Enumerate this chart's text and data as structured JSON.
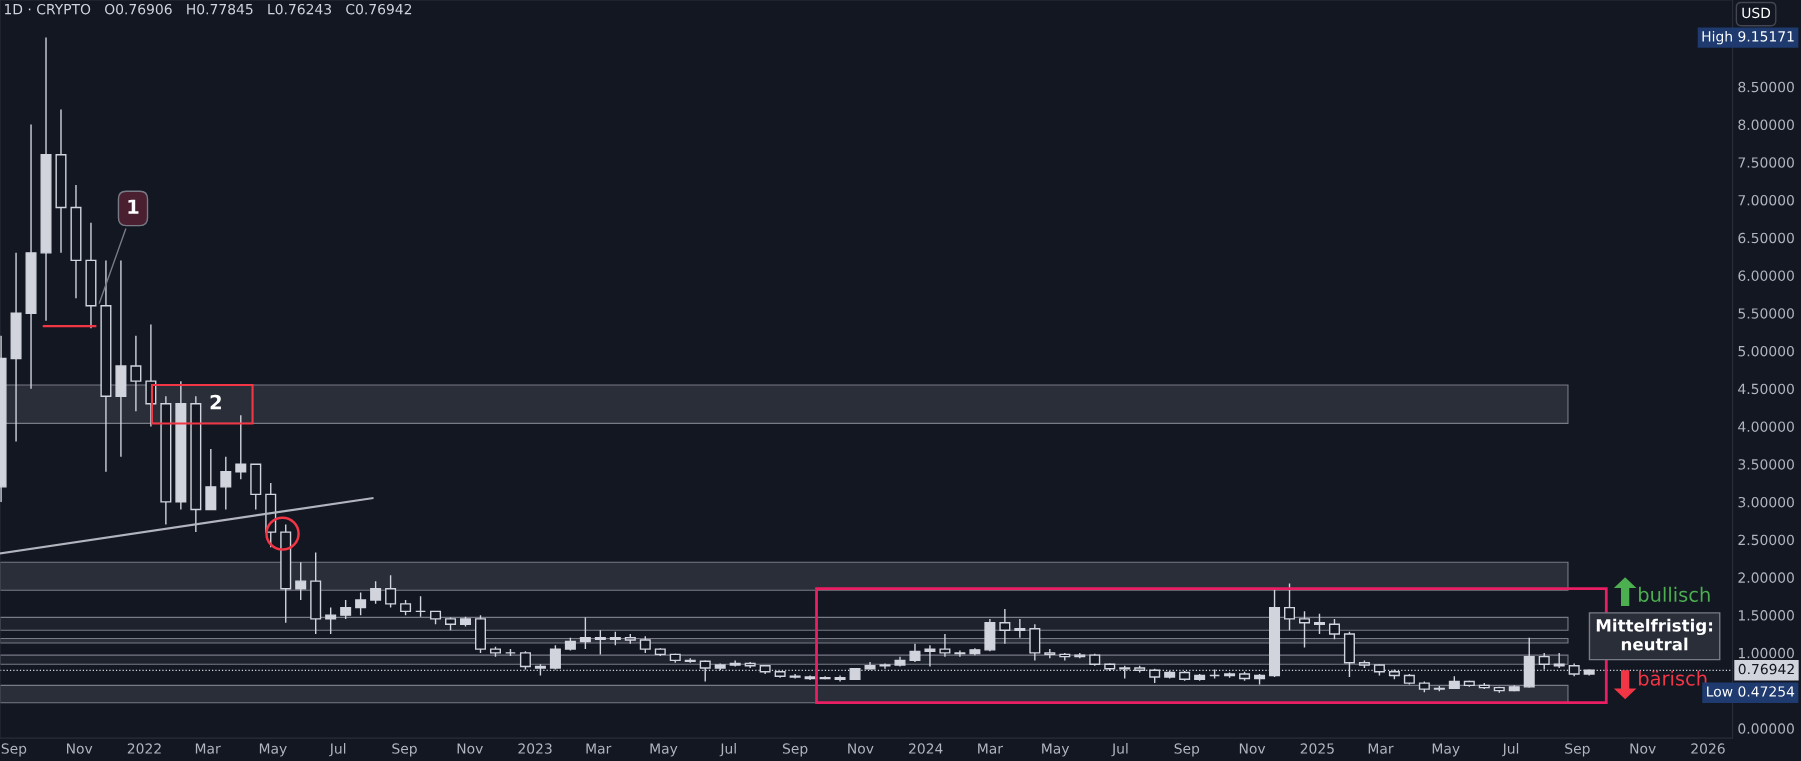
{
  "chart_data": {
    "type": "candlestick",
    "title": "1D · CRYPTO   O0.76906   H0.77845   L0.76243   C0.76942",
    "ylabel": "USD",
    "color": "#d1d4dc",
    "x": [
      "2021-08-20",
      "2021-09-03",
      "2021-09-17",
      "2021-10-01",
      "2021-10-15",
      "2021-10-29",
      "2021-11-12",
      "2021-11-26",
      "2021-12-10",
      "2021-12-24",
      "2022-01-07",
      "2022-01-21",
      "2022-02-04",
      "2022-02-18",
      "2022-03-04",
      "2022-03-18",
      "2022-04-01",
      "2022-04-15",
      "2022-04-29",
      "2022-05-13",
      "2022-05-27",
      "2022-06-10",
      "2022-06-24",
      "2022-07-08",
      "2022-07-22",
      "2022-08-05",
      "2022-08-19",
      "2022-09-02",
      "2022-09-16",
      "2022-09-30",
      "2022-10-14",
      "2022-10-28",
      "2022-11-11",
      "2022-11-25",
      "2022-12-09",
      "2022-12-23",
      "2023-01-06",
      "2023-01-20",
      "2023-02-03",
      "2023-02-17",
      "2023-03-03",
      "2023-03-17",
      "2023-03-31",
      "2023-04-14",
      "2023-04-28",
      "2023-05-12",
      "2023-05-26",
      "2023-06-09",
      "2023-06-23",
      "2023-07-07",
      "2023-07-21",
      "2023-08-04",
      "2023-08-18",
      "2023-09-01",
      "2023-09-15",
      "2023-09-29",
      "2023-10-13",
      "2023-10-27",
      "2023-11-10",
      "2023-11-24",
      "2023-12-08",
      "2023-12-22",
      "2024-01-05",
      "2024-01-19",
      "2024-02-02",
      "2024-02-16",
      "2024-03-01",
      "2024-03-15",
      "2024-03-29",
      "2024-04-12",
      "2024-04-26",
      "2024-05-10",
      "2024-05-24",
      "2024-06-07",
      "2024-06-21",
      "2024-07-05",
      "2024-07-19",
      "2024-08-02",
      "2024-08-16",
      "2024-08-30",
      "2024-09-13",
      "2024-09-27",
      "2024-10-11",
      "2024-10-25",
      "2024-11-08",
      "2024-11-22",
      "2024-12-06",
      "2024-12-20",
      "2025-01-03",
      "2025-01-17",
      "2025-01-31",
      "2025-02-14",
      "2025-02-28",
      "2025-03-14",
      "2025-03-28",
      "2025-04-11",
      "2025-04-25",
      "2025-05-09",
      "2025-05-23",
      "2025-06-06",
      "2025-06-20",
      "2025-07-04",
      "2025-07-18",
      "2025-08-01",
      "2025-08-15",
      "2025-08-29",
      "2025-09-12"
    ],
    "ohlc": [
      [
        3.2,
        5.2,
        3.0,
        4.9
      ],
      [
        4.9,
        6.3,
        3.8,
        5.5
      ],
      [
        5.5,
        8.0,
        4.5,
        6.3
      ],
      [
        6.3,
        9.15171,
        5.4,
        7.6
      ],
      [
        7.6,
        8.2,
        6.3,
        6.9
      ],
      [
        6.9,
        7.2,
        5.7,
        6.2
      ],
      [
        6.2,
        6.7,
        5.3,
        5.6
      ],
      [
        5.6,
        6.2,
        3.4,
        4.4
      ],
      [
        4.4,
        6.2,
        3.6,
        4.8
      ],
      [
        4.8,
        5.2,
        4.2,
        4.6
      ],
      [
        4.6,
        5.35,
        4.0,
        4.3
      ],
      [
        4.3,
        4.4,
        2.7,
        3.0
      ],
      [
        3.0,
        4.6,
        2.9,
        4.3
      ],
      [
        4.3,
        4.4,
        2.6,
        2.9
      ],
      [
        2.9,
        3.7,
        2.9,
        3.2
      ],
      [
        3.2,
        3.6,
        2.9,
        3.4
      ],
      [
        3.4,
        4.15,
        3.3,
        3.5
      ],
      [
        3.5,
        3.5,
        2.9,
        3.1
      ],
      [
        3.1,
        3.25,
        2.4,
        2.6
      ],
      [
        2.6,
        2.7,
        1.4,
        1.85
      ],
      [
        1.85,
        2.2,
        1.7,
        1.95
      ],
      [
        1.95,
        2.33,
        1.25,
        1.45
      ],
      [
        1.45,
        1.6,
        1.25,
        1.5
      ],
      [
        1.5,
        1.7,
        1.45,
        1.6
      ],
      [
        1.6,
        1.8,
        1.5,
        1.7
      ],
      [
        1.7,
        1.95,
        1.65,
        1.85
      ],
      [
        1.85,
        2.03,
        1.6,
        1.65
      ],
      [
        1.65,
        1.7,
        1.5,
        1.55
      ],
      [
        1.55,
        1.75,
        1.48,
        1.55
      ],
      [
        1.55,
        1.55,
        1.38,
        1.45
      ],
      [
        1.45,
        1.47,
        1.3,
        1.38
      ],
      [
        1.38,
        1.48,
        1.35,
        1.45
      ],
      [
        1.45,
        1.5,
        1.0,
        1.05
      ],
      [
        1.05,
        1.08,
        0.95,
        1.0
      ],
      [
        1.0,
        1.05,
        0.96,
        1.0
      ],
      [
        1.0,
        1.02,
        0.78,
        0.82
      ],
      [
        0.82,
        0.85,
        0.7,
        0.8
      ],
      [
        0.8,
        1.1,
        0.78,
        1.05
      ],
      [
        1.05,
        1.2,
        1.03,
        1.15
      ],
      [
        1.15,
        1.47,
        1.05,
        1.2
      ],
      [
        1.2,
        1.3,
        0.98,
        1.18
      ],
      [
        1.18,
        1.28,
        1.1,
        1.2
      ],
      [
        1.2,
        1.25,
        1.12,
        1.17
      ],
      [
        1.17,
        1.22,
        1.0,
        1.05
      ],
      [
        1.05,
        1.06,
        0.96,
        0.98
      ],
      [
        0.98,
        0.99,
        0.87,
        0.9
      ],
      [
        0.9,
        0.93,
        0.87,
        0.89
      ],
      [
        0.89,
        0.9,
        0.62,
        0.8
      ],
      [
        0.8,
        0.86,
        0.77,
        0.84
      ],
      [
        0.84,
        0.9,
        0.82,
        0.86
      ],
      [
        0.86,
        0.88,
        0.8,
        0.83
      ],
      [
        0.83,
        0.84,
        0.72,
        0.75
      ],
      [
        0.75,
        0.76,
        0.67,
        0.69
      ],
      [
        0.69,
        0.72,
        0.66,
        0.68
      ],
      [
        0.68,
        0.7,
        0.64,
        0.66
      ],
      [
        0.66,
        0.69,
        0.65,
        0.67
      ],
      [
        0.67,
        0.7,
        0.62,
        0.65
      ],
      [
        0.65,
        0.8,
        0.64,
        0.79
      ],
      [
        0.79,
        0.88,
        0.78,
        0.83
      ],
      [
        0.83,
        0.86,
        0.79,
        0.84
      ],
      [
        0.84,
        0.95,
        0.82,
        0.9
      ],
      [
        0.9,
        1.12,
        0.88,
        1.02
      ],
      [
        1.02,
        1.1,
        0.82,
        1.05
      ],
      [
        1.05,
        1.25,
        0.95,
        1.0
      ],
      [
        1.0,
        1.03,
        0.95,
        0.99
      ],
      [
        0.99,
        1.06,
        0.97,
        1.04
      ],
      [
        1.04,
        1.45,
        1.02,
        1.4
      ],
      [
        1.4,
        1.58,
        1.12,
        1.3
      ],
      [
        1.3,
        1.45,
        1.2,
        1.32
      ],
      [
        1.32,
        1.38,
        0.9,
        1.0
      ],
      [
        1.0,
        1.05,
        0.93,
        0.98
      ],
      [
        0.98,
        1.0,
        0.9,
        0.95
      ],
      [
        0.95,
        1.0,
        0.93,
        0.97
      ],
      [
        0.97,
        0.99,
        0.83,
        0.85
      ],
      [
        0.85,
        0.86,
        0.76,
        0.79
      ],
      [
        0.79,
        0.83,
        0.66,
        0.8
      ],
      [
        0.8,
        0.83,
        0.74,
        0.77
      ],
      [
        0.77,
        0.79,
        0.6,
        0.68
      ],
      [
        0.68,
        0.76,
        0.66,
        0.74
      ],
      [
        0.74,
        0.76,
        0.63,
        0.65
      ],
      [
        0.65,
        0.72,
        0.63,
        0.7
      ],
      [
        0.7,
        0.78,
        0.66,
        0.7
      ],
      [
        0.7,
        0.74,
        0.67,
        0.72
      ],
      [
        0.72,
        0.75,
        0.63,
        0.66
      ],
      [
        0.66,
        0.72,
        0.58,
        0.7
      ],
      [
        0.7,
        1.85,
        0.68,
        1.6
      ],
      [
        1.6,
        1.92,
        1.3,
        1.45
      ],
      [
        1.45,
        1.55,
        1.07,
        1.4
      ],
      [
        1.4,
        1.52,
        1.25,
        1.38
      ],
      [
        1.38,
        1.45,
        1.18,
        1.25
      ],
      [
        1.25,
        1.28,
        0.68,
        0.87
      ],
      [
        0.87,
        0.9,
        0.8,
        0.84
      ],
      [
        0.84,
        0.85,
        0.7,
        0.75
      ],
      [
        0.75,
        0.78,
        0.65,
        0.7
      ],
      [
        0.7,
        0.72,
        0.58,
        0.6
      ],
      [
        0.6,
        0.62,
        0.48,
        0.52
      ],
      [
        0.52,
        0.56,
        0.49,
        0.53
      ],
      [
        0.53,
        0.69,
        0.52,
        0.62
      ],
      [
        0.62,
        0.63,
        0.55,
        0.57
      ],
      [
        0.57,
        0.6,
        0.52,
        0.54
      ],
      [
        0.54,
        0.55,
        0.47254,
        0.5
      ],
      [
        0.5,
        0.57,
        0.49,
        0.55
      ],
      [
        0.55,
        1.2,
        0.54,
        0.95
      ],
      [
        0.95,
        1.0,
        0.78,
        0.85
      ],
      [
        0.85,
        1.0,
        0.8,
        0.83
      ],
      [
        0.83,
        0.86,
        0.69,
        0.72
      ],
      [
        0.72,
        0.77845,
        0.7,
        0.76942
      ]
    ],
    "series": [
      {
        "type": "line",
        "color": "#b2b5be",
        "x": [
          "2021-08-20",
          "2022-08-02"
        ],
        "values": [
          2.32,
          3.05
        ]
      },
      {
        "type": "line",
        "color": "#f23645",
        "x": [
          "2021-09-29",
          "2021-11-16"
        ],
        "values": [
          5.33,
          5.33
        ]
      }
    ],
    "xlim": [
      "2021-08-19",
      "2026-01-24"
    ],
    "xticks": [
      {
        "value": "2021-09-01",
        "label": "Sep"
      },
      {
        "value": "2021-11-01",
        "label": "Nov"
      },
      {
        "value": "2022-01-01",
        "label": "2022"
      },
      {
        "value": "2022-03-01",
        "label": "Mar"
      },
      {
        "value": "2022-05-01",
        "label": "May"
      },
      {
        "value": "2022-07-01",
        "label": "Jul"
      },
      {
        "value": "2022-09-01",
        "label": "Sep"
      },
      {
        "value": "2022-11-01",
        "label": "Nov"
      },
      {
        "value": "2023-01-01",
        "label": "2023"
      },
      {
        "value": "2023-03-01",
        "label": "Mar"
      },
      {
        "value": "2023-05-01",
        "label": "May"
      },
      {
        "value": "2023-07-01",
        "label": "Jul"
      },
      {
        "value": "2023-09-01",
        "label": "Sep"
      },
      {
        "value": "2023-11-01",
        "label": "Nov"
      },
      {
        "value": "2024-01-01",
        "label": "2024"
      },
      {
        "value": "2024-03-01",
        "label": "Mar"
      },
      {
        "value": "2024-05-01",
        "label": "May"
      },
      {
        "value": "2024-07-01",
        "label": "Jul"
      },
      {
        "value": "2024-09-01",
        "label": "Sep"
      },
      {
        "value": "2024-11-01",
        "label": "Nov"
      },
      {
        "value": "2025-01-01",
        "label": "2025"
      },
      {
        "value": "2025-03-01",
        "label": "Mar"
      },
      {
        "value": "2025-05-01",
        "label": "May"
      },
      {
        "value": "2025-07-01",
        "label": "Jul"
      },
      {
        "value": "2025-09-01",
        "label": "Sep"
      },
      {
        "value": "2025-11-01",
        "label": "Nov"
      },
      {
        "value": "2026-01-01",
        "label": "2026"
      }
    ],
    "ylim": [
      -0.13,
      9.65
    ],
    "yticks": [
      {
        "value": 0,
        "label": "0.00000"
      },
      {
        "value": 1,
        "label": "1.00000"
      },
      {
        "value": 1.5,
        "label": "1.50000"
      },
      {
        "value": 2,
        "label": "2.00000"
      },
      {
        "value": 2.5,
        "label": "2.50000"
      },
      {
        "value": 3,
        "label": "3.00000"
      },
      {
        "value": 3.5,
        "label": "3.50000"
      },
      {
        "value": 4,
        "label": "4.00000"
      },
      {
        "value": 4.5,
        "label": "4.50000"
      },
      {
        "value": 5,
        "label": "5.00000"
      },
      {
        "value": 5.5,
        "label": "5.50000"
      },
      {
        "value": 6,
        "label": "6.00000"
      },
      {
        "value": 6.5,
        "label": "6.50000"
      },
      {
        "value": 7,
        "label": "7.00000"
      },
      {
        "value": 7.5,
        "label": "7.50000"
      },
      {
        "value": 8,
        "label": "8.00000"
      },
      {
        "value": 8.5,
        "label": "8.50000"
      }
    ],
    "bands": [
      {
        "axis": "y",
        "from": 4.04,
        "to": 4.55,
        "color": "#2a2e39"
      },
      {
        "axis": "y",
        "from": 1.83,
        "to": 2.2,
        "color": "#2a2e39"
      },
      {
        "axis": "y",
        "from": 1.3,
        "to": 1.47,
        "color": "#1e222d"
      },
      {
        "axis": "y",
        "from": 1.13,
        "to": 1.19,
        "color": "#2a2e39"
      },
      {
        "axis": "y",
        "from": 0.85,
        "to": 0.97,
        "color": "#1e222d"
      },
      {
        "axis": "y",
        "from": 0.34,
        "to": 0.57,
        "color": "#2a2e39"
      }
    ],
    "ref_lines": [
      {
        "axis": "y",
        "value": 0.76942,
        "label": "0.76942",
        "line_style": "dotted",
        "color": "#d1d4dc"
      }
    ],
    "annotations": [
      {
        "text": "1",
        "x": "2021-11-19",
        "y": 5.6
      },
      {
        "text": "2",
        "x": "2022-02-20",
        "y": 4.3
      },
      "bullisch",
      "Mittelfristig:\nneutral",
      "bärisch",
      "High 9.15171",
      "Low 0.47254"
    ]
  }
}
